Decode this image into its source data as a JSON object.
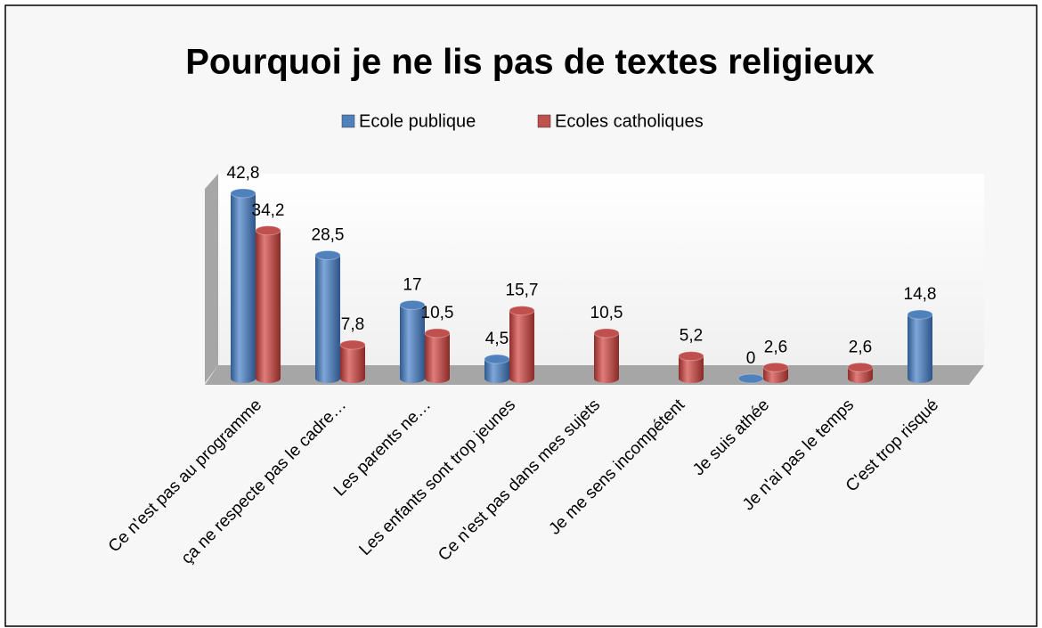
{
  "chart_data": {
    "type": "bar3d-cylinder",
    "title": "Pourquoi je ne lis pas de textes religieux",
    "categories": [
      "Ce n'est pas au programme",
      "ça ne respecte pas le cadre…",
      "Les parents ne…",
      "Les enfants sont trop jeunes",
      "Ce n'est pas dans mes sujets",
      "Je me sens incompétent",
      "Je suis athée",
      "Je n'ai pas le temps",
      "C'est trop risqué"
    ],
    "series": [
      {
        "name": "Ecole publique",
        "color": "#4f81bd",
        "values": [
          42.8,
          28.5,
          17,
          4.5,
          null,
          null,
          0,
          null,
          14.8
        ],
        "value_labels": [
          "42,8",
          "28,5",
          "17",
          "4,5",
          null,
          null,
          "0",
          null,
          "14,8"
        ]
      },
      {
        "name": "Ecoles catholiques",
        "color": "#c0504d",
        "values": [
          34.2,
          7.8,
          10.5,
          15.7,
          10.5,
          5.2,
          2.6,
          2.6,
          null
        ],
        "value_labels": [
          "34,2",
          "7,8",
          "10,5",
          "15,7",
          "10,5",
          "5,2",
          "2,6",
          "2,6",
          null
        ]
      }
    ],
    "legend": "top"
  }
}
